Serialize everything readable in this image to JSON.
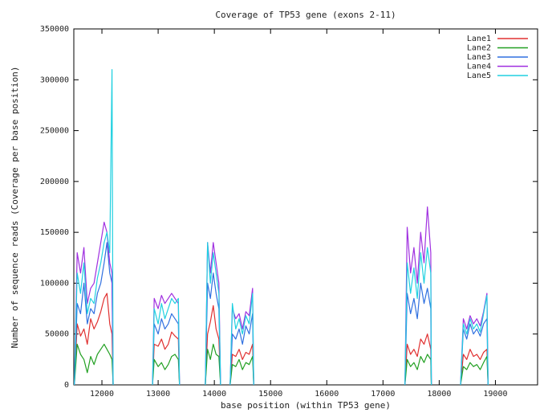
{
  "chart_data": {
    "type": "line",
    "title": "Coverage of TP53 gene (exons 2-11)",
    "xlabel": "base position (within TP53 gene)",
    "ylabel": "Number of sequence reads (Coverage per base position)",
    "xlim": [
      11500,
      19750
    ],
    "ylim": [
      0,
      350000
    ],
    "xticks": [
      12000,
      13000,
      14000,
      15000,
      16000,
      17000,
      18000,
      19000
    ],
    "yticks": [
      0,
      50000,
      100000,
      150000,
      200000,
      250000,
      300000,
      350000
    ],
    "legend_position": "top-right",
    "grid": false,
    "series": [
      {
        "name": "Lane1",
        "color": "#e03030",
        "segments": [
          {
            "x": [
              11510,
              11560,
              11620,
              11680,
              11740,
              11800,
              11860,
              11920,
              11980,
              12040,
              12090,
              12140,
              12180,
              12200
            ],
            "y": [
              0,
              60000,
              48000,
              55000,
              40000,
              65000,
              55000,
              62000,
              72000,
              85000,
              90000,
              60000,
              50000,
              0
            ]
          },
          {
            "x": [
              12900,
              12930,
              13000,
              13060,
              13120,
              13180,
              13240,
              13300,
              13360,
              13380
            ],
            "y": [
              0,
              40000,
              38000,
              45000,
              35000,
              40000,
              52000,
              48000,
              45000,
              0
            ]
          },
          {
            "x": [
              13840,
              13880,
              13930,
              13980,
              14030,
              14080,
              14110
            ],
            "y": [
              0,
              50000,
              62000,
              78000,
              55000,
              45000,
              0
            ]
          },
          {
            "x": [
              14280,
              14320,
              14380,
              14440,
              14500,
              14560,
              14620,
              14680,
              14700
            ],
            "y": [
              0,
              30000,
              28000,
              35000,
              25000,
              32000,
              30000,
              40000,
              0
            ]
          },
          {
            "x": [
              17390,
              17430,
              17490,
              17550,
              17610,
              17670,
              17730,
              17790,
              17850,
              17860
            ],
            "y": [
              0,
              40000,
              30000,
              35000,
              28000,
              45000,
              40000,
              50000,
              35000,
              0
            ]
          },
          {
            "x": [
              18380,
              18430,
              18490,
              18550,
              18610,
              18670,
              18730,
              18790,
              18850,
              18870
            ],
            "y": [
              0,
              30000,
              25000,
              35000,
              28000,
              30000,
              25000,
              32000,
              35000,
              0
            ]
          }
        ]
      },
      {
        "name": "Lane2",
        "color": "#22a022",
        "segments": [
          {
            "x": [
              11510,
              11560,
              11620,
              11680,
              11740,
              11800,
              11860,
              11920,
              11980,
              12040,
              12090,
              12140,
              12180,
              12200
            ],
            "y": [
              0,
              40000,
              30000,
              25000,
              12000,
              28000,
              20000,
              30000,
              35000,
              40000,
              35000,
              30000,
              25000,
              0
            ]
          },
          {
            "x": [
              12900,
              12930,
              13000,
              13060,
              13120,
              13180,
              13240,
              13300,
              13360,
              13380
            ],
            "y": [
              0,
              25000,
              18000,
              22000,
              15000,
              20000,
              28000,
              30000,
              25000,
              0
            ]
          },
          {
            "x": [
              13840,
              13880,
              13930,
              13980,
              14030,
              14080,
              14110
            ],
            "y": [
              0,
              35000,
              25000,
              40000,
              30000,
              28000,
              0
            ]
          },
          {
            "x": [
              14280,
              14320,
              14380,
              14440,
              14500,
              14560,
              14620,
              14680,
              14700
            ],
            "y": [
              0,
              20000,
              18000,
              25000,
              15000,
              22000,
              20000,
              28000,
              0
            ]
          },
          {
            "x": [
              17390,
              17430,
              17490,
              17550,
              17610,
              17670,
              17730,
              17790,
              17850,
              17860
            ],
            "y": [
              0,
              25000,
              18000,
              22000,
              15000,
              28000,
              22000,
              30000,
              25000,
              0
            ]
          },
          {
            "x": [
              18380,
              18430,
              18490,
              18550,
              18610,
              18670,
              18730,
              18790,
              18850,
              18870
            ],
            "y": [
              0,
              18000,
              15000,
              22000,
              18000,
              20000,
              15000,
              22000,
              28000,
              0
            ]
          }
        ]
      },
      {
        "name": "Lane3",
        "color": "#3070e0",
        "segments": [
          {
            "x": [
              11510,
              11560,
              11620,
              11680,
              11740,
              11800,
              11860,
              11920,
              11980,
              12040,
              12090,
              12140,
              12180,
              12200
            ],
            "y": [
              0,
              80000,
              70000,
              100000,
              60000,
              75000,
              70000,
              90000,
              100000,
              120000,
              140000,
              110000,
              100000,
              0
            ]
          },
          {
            "x": [
              12900,
              12930,
              13000,
              13060,
              13120,
              13180,
              13240,
              13300,
              13360,
              13380
            ],
            "y": [
              0,
              60000,
              50000,
              65000,
              55000,
              60000,
              70000,
              65000,
              60000,
              0
            ]
          },
          {
            "x": [
              13840,
              13880,
              13930,
              13980,
              14030,
              14080,
              14110
            ],
            "y": [
              0,
              100000,
              85000,
              110000,
              90000,
              75000,
              0
            ]
          },
          {
            "x": [
              14280,
              14320,
              14380,
              14440,
              14500,
              14560,
              14620,
              14680,
              14700
            ],
            "y": [
              0,
              50000,
              45000,
              55000,
              40000,
              58000,
              50000,
              70000,
              0
            ]
          },
          {
            "x": [
              17390,
              17430,
              17490,
              17550,
              17610,
              17670,
              17730,
              17790,
              17850,
              17860
            ],
            "y": [
              0,
              90000,
              70000,
              85000,
              65000,
              100000,
              80000,
              95000,
              75000,
              0
            ]
          },
          {
            "x": [
              18380,
              18430,
              18490,
              18550,
              18610,
              18670,
              18730,
              18790,
              18850,
              18870
            ],
            "y": [
              0,
              55000,
              45000,
              60000,
              50000,
              55000,
              48000,
              60000,
              65000,
              0
            ]
          }
        ]
      },
      {
        "name": "Lane4",
        "color": "#a030e0",
        "segments": [
          {
            "x": [
              11510,
              11560,
              11620,
              11680,
              11740,
              11800,
              11860,
              11920,
              11980,
              12040,
              12090,
              12140,
              12180,
              12200
            ],
            "y": [
              0,
              130000,
              110000,
              135000,
              80000,
              95000,
              100000,
              120000,
              140000,
              160000,
              150000,
              120000,
              110000,
              0
            ]
          },
          {
            "x": [
              12900,
              12930,
              13000,
              13060,
              13120,
              13180,
              13240,
              13300,
              13360,
              13380
            ],
            "y": [
              0,
              85000,
              75000,
              88000,
              80000,
              85000,
              90000,
              85000,
              80000,
              0
            ]
          },
          {
            "x": [
              13840,
              13880,
              13930,
              13980,
              14030,
              14080,
              14110
            ],
            "y": [
              0,
              140000,
              110000,
              140000,
              120000,
              100000,
              0
            ]
          },
          {
            "x": [
              14280,
              14320,
              14380,
              14440,
              14500,
              14560,
              14620,
              14680,
              14700
            ],
            "y": [
              0,
              75000,
              65000,
              70000,
              55000,
              72000,
              68000,
              95000,
              0
            ]
          },
          {
            "x": [
              17390,
              17430,
              17490,
              17550,
              17610,
              17670,
              17730,
              17790,
              17850,
              17860
            ],
            "y": [
              0,
              155000,
              110000,
              135000,
              100000,
              150000,
              120000,
              175000,
              130000,
              0
            ]
          },
          {
            "x": [
              18380,
              18430,
              18490,
              18550,
              18610,
              18670,
              18730,
              18790,
              18850,
              18870
            ],
            "y": [
              0,
              65000,
              55000,
              68000,
              60000,
              65000,
              58000,
              72000,
              90000,
              0
            ]
          }
        ]
      },
      {
        "name": "Lane5",
        "color": "#20d0e0",
        "segments": [
          {
            "x": [
              11510,
              11560,
              11620,
              11680,
              11740,
              11800,
              11860,
              11920,
              11980,
              12040,
              12090,
              12140,
              12180,
              12200
            ],
            "y": [
              0,
              110000,
              90000,
              120000,
              70000,
              85000,
              80000,
              105000,
              120000,
              140000,
              150000,
              130000,
              310000,
              0
            ]
          },
          {
            "x": [
              12900,
              12930,
              13000,
              13060,
              13120,
              13180,
              13240,
              13300,
              13360,
              13380
            ],
            "y": [
              0,
              75000,
              60000,
              80000,
              65000,
              75000,
              85000,
              80000,
              85000,
              0
            ]
          },
          {
            "x": [
              13840,
              13880,
              13930,
              13980,
              14030,
              14080,
              14110
            ],
            "y": [
              0,
              140000,
              100000,
              130000,
              110000,
              90000,
              0
            ]
          },
          {
            "x": [
              14280,
              14320,
              14380,
              14440,
              14500,
              14560,
              14620,
              14680,
              14700
            ],
            "y": [
              0,
              80000,
              55000,
              65000,
              50000,
              68000,
              60000,
              90000,
              0
            ]
          },
          {
            "x": [
              17390,
              17430,
              17490,
              17550,
              17610,
              17670,
              17730,
              17790,
              17850,
              17860
            ],
            "y": [
              0,
              120000,
              90000,
              115000,
              85000,
              130000,
              100000,
              135000,
              110000,
              0
            ]
          },
          {
            "x": [
              18380,
              18430,
              18490,
              18550,
              18610,
              18670,
              18730,
              18790,
              18850,
              18870
            ],
            "y": [
              0,
              60000,
              50000,
              65000,
              55000,
              60000,
              52000,
              70000,
              88000,
              0
            ]
          }
        ]
      }
    ]
  }
}
